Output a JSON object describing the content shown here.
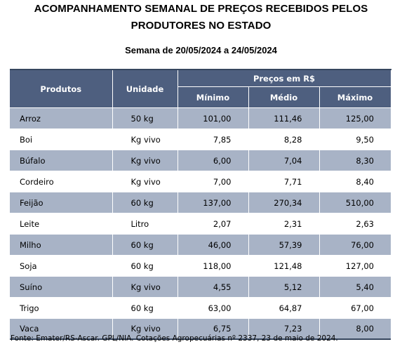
{
  "title": {
    "line1": "ACOMPANHAMENTO SEMANAL DE PREÇOS RECEBIDOS PELOS",
    "line2": "PRODUTORES NO ESTADO"
  },
  "week": "Semana de 20/05/2024 a 24/05/2024",
  "headers": {
    "products": "Produtos",
    "unit": "Unidade",
    "prices_group": "Preços em R$",
    "min": "Mínimo",
    "avg": "Médio",
    "max": "Máximo"
  },
  "rows": [
    {
      "product": "Arroz",
      "unit": "50 kg",
      "min": "101,00",
      "avg": "111,46",
      "max": "125,00"
    },
    {
      "product": "Boi",
      "unit": "Kg vivo",
      "min": "7,85",
      "avg": "8,28",
      "max": "9,50"
    },
    {
      "product": "Búfalo",
      "unit": "Kg vivo",
      "min": "6,00",
      "avg": "7,04",
      "max": "8,30"
    },
    {
      "product": "Cordeiro",
      "unit": "Kg vivo",
      "min": "7,00",
      "avg": "7,71",
      "max": "8,40"
    },
    {
      "product": "Feijão",
      "unit": "60 kg",
      "min": "137,00",
      "avg": "270,34",
      "max": "510,00"
    },
    {
      "product": "Leite",
      "unit": "Litro",
      "min": "2,07",
      "avg": "2,31",
      "max": "2,63"
    },
    {
      "product": "Milho",
      "unit": "60 kg",
      "min": "46,00",
      "avg": "57,39",
      "max": "76,00"
    },
    {
      "product": "Soja",
      "unit": "60 kg",
      "min": "118,00",
      "avg": "121,48",
      "max": "127,00"
    },
    {
      "product": "Suíno",
      "unit": "Kg vivo",
      "min": "4,55",
      "avg": "5,12",
      "max": "5,40"
    },
    {
      "product": "Trigo",
      "unit": "60 kg",
      "min": "63,00",
      "avg": "64,87",
      "max": "67,00"
    },
    {
      "product": "Vaca",
      "unit": "Kg vivo",
      "min": "6,75",
      "avg": "7,23",
      "max": "8,00"
    }
  ],
  "source": "Fonte: Emater/RS-Ascar. GPL/NIA. Cotações Agropecuárias nº 2337, 23 de maio de 2024.",
  "colors": {
    "header_bg": "#4e5f7f",
    "shaded_row_bg": "#a8b3c6",
    "border": "#36465e"
  }
}
